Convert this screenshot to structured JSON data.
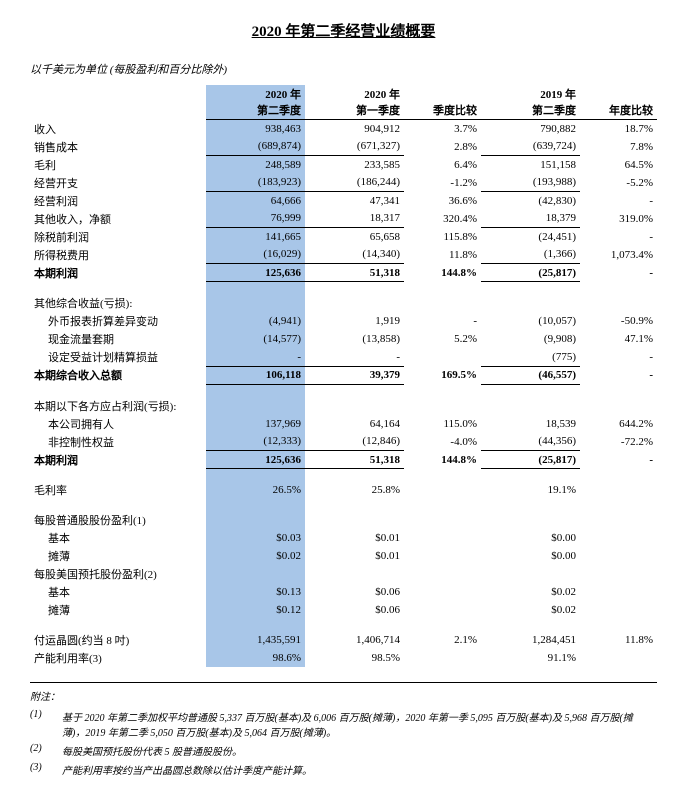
{
  "title": "2020 年第二季经营业绩概要",
  "subtitle": "以千美元为单位 (每股盈利和百分比除外)",
  "headers": {
    "q2_2020_a": "2020 年",
    "q2_2020_b": "第二季度",
    "q1_2020_a": "2020 年",
    "q1_2020_b": "第一季度",
    "seq": "季度比较",
    "q2_2019_a": "2019 年",
    "q2_2019_b": "第二季度",
    "yoy": "年度比较"
  },
  "rows": {
    "revenue": {
      "label": "收入",
      "q2": "938,463",
      "q1": "904,912",
      "seq": "3.7%",
      "q219": "790,882",
      "yoy": "18.7%"
    },
    "cogs": {
      "label": "销售成本",
      "q2": "(689,874)",
      "q1": "(671,327)",
      "seq": "2.8%",
      "q219": "(639,724)",
      "yoy": "7.8%"
    },
    "gross": {
      "label": "毛利",
      "q2": "248,589",
      "q1": "233,585",
      "seq": "6.4%",
      "q219": "151,158",
      "yoy": "64.5%"
    },
    "opex": {
      "label": "经营开支",
      "q2": "(183,923)",
      "q1": "(186,244)",
      "seq": "-1.2%",
      "q219": "(193,988)",
      "yoy": "-5.2%"
    },
    "opprofit": {
      "label": "经营利润",
      "q2": "64,666",
      "q1": "47,341",
      "seq": "36.6%",
      "q219": "(42,830)",
      "yoy": "-"
    },
    "other": {
      "label": "其他收入，净额",
      "q2": "76,999",
      "q1": "18,317",
      "seq": "320.4%",
      "q219": "18,379",
      "yoy": "319.0%"
    },
    "pretax": {
      "label": "除税前利润",
      "q2": "141,665",
      "q1": "65,658",
      "seq": "115.8%",
      "q219": "(24,451)",
      "yoy": "-"
    },
    "tax": {
      "label": "所得税费用",
      "q2": "(16,029)",
      "q1": "(14,340)",
      "seq": "11.8%",
      "q219": "(1,366)",
      "yoy": "1,073.4%"
    },
    "netprofit": {
      "label": "本期利润",
      "q2": "125,636",
      "q1": "51,318",
      "seq": "144.8%",
      "q219": "(25,817)",
      "yoy": "-"
    },
    "oci_label": {
      "label": "其他综合收益(亏损):"
    },
    "fx": {
      "label": "外币报表折算差异变动",
      "q2": "(4,941)",
      "q1": "1,919",
      "seq": "-",
      "q219": "(10,057)",
      "yoy": "-50.9%"
    },
    "hedge": {
      "label": "现金流量套期",
      "q2": "(14,577)",
      "q1": "(13,858)",
      "seq": "5.2%",
      "q219": "(9,908)",
      "yoy": "47.1%"
    },
    "pension": {
      "label": "设定受益计划精算损益",
      "q2": "-",
      "q1": "-",
      "seq": "",
      "q219": "(775)",
      "yoy": "-"
    },
    "totaloci": {
      "label": "本期综合收入总额",
      "q2": "106,118",
      "q1": "39,379",
      "seq": "169.5%",
      "q219": "(46,557)",
      "yoy": "-"
    },
    "attr_label": {
      "label": "本期以下各方应占利润(亏损):"
    },
    "owners": {
      "label": "本公司拥有人",
      "q2": "137,969",
      "q1": "64,164",
      "seq": "115.0%",
      "q219": "18,539",
      "yoy": "644.2%"
    },
    "nci": {
      "label": "非控制性权益",
      "q2": "(12,333)",
      "q1": "(12,846)",
      "seq": "-4.0%",
      "q219": "(44,356)",
      "yoy": "-72.2%"
    },
    "netprofit2": {
      "label": "本期利润",
      "q2": "125,636",
      "q1": "51,318",
      "seq": "144.8%",
      "q219": "(25,817)",
      "yoy": "-"
    },
    "margin": {
      "label": "毛利率",
      "q2": "26.5%",
      "q1": "25.8%",
      "seq": "",
      "q219": "19.1%",
      "yoy": ""
    },
    "eps_ord": {
      "label": "每股普通股股份盈利(1)"
    },
    "eps_basic": {
      "label": "基本",
      "q2": "$0.03",
      "q1": "$0.01",
      "seq": "",
      "q219": "$0.00",
      "yoy": ""
    },
    "eps_diluted": {
      "label": "摊薄",
      "q2": "$0.02",
      "q1": "$0.01",
      "seq": "",
      "q219": "$0.00",
      "yoy": ""
    },
    "eps_adr": {
      "label": "每股美国预托股份盈利(2)"
    },
    "adr_basic": {
      "label": "基本",
      "q2": "$0.13",
      "q1": "$0.06",
      "seq": "",
      "q219": "$0.02",
      "yoy": ""
    },
    "adr_diluted": {
      "label": "摊薄",
      "q2": "$0.12",
      "q1": "$0.06",
      "seq": "",
      "q219": "$0.02",
      "yoy": ""
    },
    "wafers": {
      "label": "付运晶圆(约当 8 吋)",
      "q2": "1,435,591",
      "q1": "1,406,714",
      "seq": "2.1%",
      "q219": "1,284,451",
      "yoy": "11.8%"
    },
    "utilization": {
      "label": "产能利用率(3)",
      "q2": "98.6%",
      "q1": "98.5%",
      "seq": "",
      "q219": "91.1%",
      "yoy": ""
    }
  },
  "footnotes": {
    "label": "附注：",
    "n1": "基于 2020 年第二季加权平均普通股 5,337 百万股(基本)及 6,006 百万股(摊薄)，2020 年第一季 5,095 百万股(基本)及 5,968 百万股(摊薄)，2019 年第二季 5,050 百万股(基本)及 5,064 百万股(摊薄)。",
    "n2": "每股美国预托股份代表 5 股普通股股份。",
    "n3": "产能利用率按约当产出晶圆总数除以估计季度产能计算。"
  }
}
